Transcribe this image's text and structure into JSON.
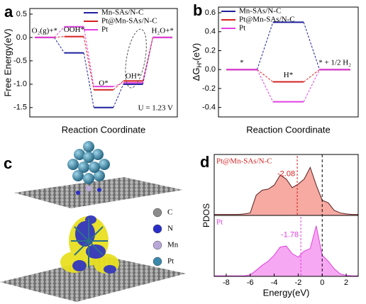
{
  "chart_data": [
    {
      "type": "step",
      "panel_label": "a",
      "ylabel": "Free Energy(eV)",
      "xlabel": "Reaction Coordinate",
      "categories": [
        "O₂(g)+*",
        "OOH*",
        "O*",
        "OH*",
        "H₂O+*"
      ],
      "series": [
        {
          "name": "Mn-SAs/N-C",
          "color": "#1f1f9e",
          "values": [
            0,
            -0.33,
            -1.5,
            -1.0,
            0
          ]
        },
        {
          "name": "Pt@Mn-SAs/N-C",
          "color": "#d62020",
          "values": [
            0,
            0.02,
            -1.12,
            -0.93,
            0
          ]
        },
        {
          "name": "Pt",
          "color": "#e040e0",
          "values": [
            0,
            0.23,
            -1.05,
            -0.97,
            0
          ]
        }
      ],
      "ylim": [
        -1.7,
        0.62
      ],
      "yticks": [
        -1.5,
        {
          "value": -1.0,
          "label": "-1.0"
        },
        -0.5,
        {
          "value": 0.0,
          "label": "0.0"
        },
        0.5
      ],
      "annotation": "U = 1.23 V"
    },
    {
      "type": "step",
      "panel_label": "b",
      "ylabel": [
        "ΔG",
        "H*",
        "(eV)"
      ],
      "xlabel": "Reaction Coordinate",
      "categories": [
        "*",
        "H*",
        "* + 1/2 H₂"
      ],
      "series": [
        {
          "name": "Mn-SAs/N-C",
          "color": "#1f1f9e",
          "values": [
            0,
            0.5,
            0
          ]
        },
        {
          "name": "Pt@Mn-SAs/N-C",
          "color": "#d62020",
          "values": [
            0,
            -0.13,
            0
          ]
        },
        {
          "name": "Pt",
          "color": "#e040e0",
          "values": [
            0,
            -0.34,
            0
          ]
        }
      ],
      "ylim": [
        -0.5,
        0.66
      ],
      "yticks": [
        -0.4,
        -0.2,
        {
          "value": 0.0,
          "label": "0.0"
        },
        0.2,
        0.4,
        0.6
      ]
    },
    {
      "type": "pdos",
      "panel_label": "d",
      "ylabel": "PDOS",
      "xlabel": "Energy(eV)",
      "x": [
        -9,
        -8.5,
        -8,
        -7.5,
        -7,
        -6.5,
        -6,
        -5.5,
        -5,
        -4.5,
        -4,
        -3.5,
        -3,
        -2.5,
        -2,
        -1.5,
        -1,
        -0.5,
        0,
        0.5,
        1,
        1.5,
        2,
        2.5,
        3
      ],
      "series": [
        {
          "name": "Pt@Mn-SAs/N-C",
          "color": "#d62020",
          "fill": "#f6aaa2",
          "d_band_center": -2.08,
          "values": [
            0.02,
            0.02,
            0.02,
            0.02,
            0.02,
            0.03,
            0.05,
            0.4,
            0.5,
            0.52,
            0.6,
            0.8,
            0.72,
            0.55,
            0.62,
            0.72,
            0.95,
            0.6,
            0.3,
            0.25,
            0.1,
            0.05,
            0.03,
            0.02,
            0.02
          ]
        },
        {
          "name": "Pt",
          "color": "#e040e0",
          "fill": "#f6a8f2",
          "d_band_center": -1.78,
          "values": [
            0.01,
            0.01,
            0.01,
            0.01,
            0.01,
            0.01,
            0.03,
            0.12,
            0.22,
            0.3,
            0.42,
            0.58,
            0.6,
            0.45,
            0.38,
            0.5,
            0.55,
            1.0,
            0.42,
            0.3,
            0.15,
            0.05,
            0.02,
            0.01,
            0.01
          ]
        }
      ],
      "xlim": [
        -9,
        3
      ],
      "ylim": [
        0,
        1.15
      ],
      "xticks": [
        -8,
        -6,
        -4,
        -2,
        0,
        2
      ]
    }
  ],
  "panel_c": {
    "panel_label": "c",
    "legend": [
      {
        "name": "C",
        "color": "#8c8c8c"
      },
      {
        "name": "N",
        "color": "#2a2ec8"
      },
      {
        "name": "Mn",
        "color": "#b8a8d8"
      },
      {
        "name": "Pt",
        "color": "#3a88aa"
      }
    ]
  }
}
